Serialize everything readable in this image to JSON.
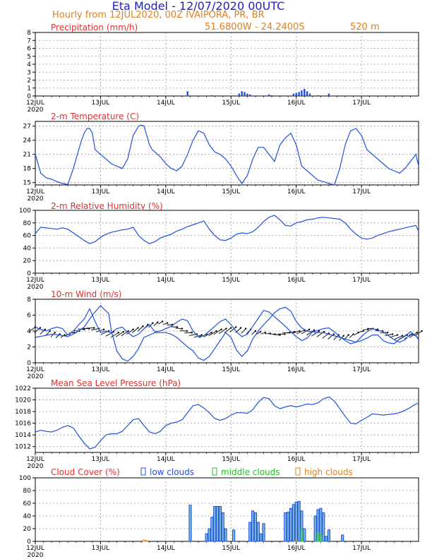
{
  "header": {
    "title": "Eta Model - 12/07/2020 00UTC",
    "subtitle": "Hourly from 12JUL2020, 00Z  IVAIPORA, PR, BR",
    "coords": "51.6800W - 24.2400S",
    "elevation": "520  m"
  },
  "colors": {
    "title": "#2020d0",
    "orange": "#e08020",
    "panel_title": "#e03030",
    "line": "#2050e0",
    "low": "#2050e0",
    "middle": "#20c020",
    "high": "#e08020",
    "grid": "#999999"
  },
  "x_labels": [
    "12JUL",
    "13JUL",
    "14JUL",
    "15JUL",
    "16JUL",
    "17JUL"
  ],
  "x_year": "2020",
  "chart_data": [
    {
      "type": "bar",
      "title": "Precipitation (mm/h)",
      "ylim": [
        0,
        8
      ],
      "yticks": [
        0,
        1,
        2,
        3,
        4,
        5,
        6,
        7,
        8
      ],
      "points": [
        [
          56,
          0.6
        ],
        [
          65,
          0.1
        ],
        [
          75,
          0.3
        ],
        [
          76,
          0.6
        ],
        [
          77,
          0.5
        ],
        [
          78,
          0.3
        ],
        [
          79,
          0.2
        ],
        [
          86,
          0.2
        ],
        [
          87,
          0.1
        ],
        [
          95,
          0.3
        ],
        [
          96,
          0.4
        ],
        [
          97,
          0.5
        ],
        [
          98,
          0.7
        ],
        [
          99,
          0.9
        ],
        [
          100,
          0.6
        ],
        [
          101,
          0.3
        ],
        [
          104,
          0.1
        ],
        [
          108,
          0.3
        ]
      ]
    },
    {
      "type": "line",
      "title": "2-m Temperature (C)",
      "ylim": [
        14.5,
        28
      ],
      "yticks": [
        15,
        18,
        21,
        24,
        27
      ],
      "x": [
        0,
        2,
        4,
        6,
        8,
        10,
        12,
        14,
        16,
        17,
        18,
        19,
        20,
        21,
        22,
        24,
        26,
        28,
        30,
        32,
        34,
        36,
        38,
        39,
        40,
        41,
        42,
        43,
        44,
        46,
        48,
        50,
        52,
        54,
        56,
        58,
        60,
        62,
        64,
        66,
        68,
        70,
        72,
        74,
        76,
        78,
        80,
        82,
        84,
        86,
        88,
        90,
        92,
        94,
        96,
        98,
        100,
        102,
        104,
        106,
        108,
        110,
        112,
        114,
        116,
        118,
        120,
        122,
        124,
        126,
        128,
        130,
        132,
        134,
        136,
        138,
        140,
        141
      ],
      "values": [
        21,
        17,
        16,
        15.7,
        15.2,
        14.8,
        14.6,
        18,
        22,
        24,
        25.5,
        26.5,
        26.5,
        25.5,
        22,
        21,
        20,
        19,
        18.5,
        18,
        20,
        25,
        27,
        27.2,
        27,
        25,
        23,
        22,
        21.5,
        20.5,
        19,
        18,
        17.5,
        18.5,
        21,
        24,
        26,
        25.5,
        23,
        21.5,
        21,
        20,
        18.5,
        16.5,
        14.8,
        16.5,
        20,
        22.5,
        22.5,
        21,
        19.5,
        23,
        24.5,
        25.5,
        23,
        18.5,
        17.5,
        16.5,
        15.5,
        15.2,
        14.8,
        14.5,
        18,
        23,
        26,
        26.5,
        25,
        22,
        21,
        20,
        19,
        18,
        17.5,
        17,
        18,
        19.5,
        21,
        18.5
      ]
    },
    {
      "type": "line",
      "title": "2-m Relative Humidity (%)",
      "ylim": [
        0,
        100
      ],
      "yticks": [
        0,
        20,
        40,
        60,
        80,
        100
      ],
      "x": [
        0,
        2,
        4,
        6,
        8,
        10,
        12,
        14,
        16,
        18,
        20,
        22,
        24,
        26,
        28,
        30,
        32,
        34,
        36,
        38,
        40,
        42,
        44,
        46,
        48,
        50,
        52,
        54,
        56,
        58,
        60,
        62,
        64,
        66,
        68,
        70,
        72,
        74,
        76,
        78,
        80,
        82,
        84,
        86,
        88,
        90,
        92,
        94,
        96,
        98,
        100,
        102,
        104,
        106,
        108,
        110,
        112,
        114,
        116,
        118,
        120,
        122,
        124,
        126,
        128,
        130,
        132,
        134,
        136,
        138,
        140,
        141
      ],
      "values": [
        63,
        73,
        72,
        71,
        70,
        72,
        70,
        64,
        58,
        52,
        47,
        50,
        57,
        62,
        65,
        67,
        69,
        70,
        73,
        60,
        52,
        47,
        50,
        56,
        59,
        62,
        67,
        70,
        74,
        77,
        80,
        83,
        70,
        60,
        53,
        52,
        56,
        62,
        64,
        63,
        66,
        73,
        82,
        89,
        92,
        85,
        76,
        75,
        80,
        82,
        85,
        86,
        88,
        89,
        88,
        87,
        86,
        80,
        70,
        62,
        56,
        54,
        56,
        60,
        63,
        66,
        68,
        70,
        72,
        74,
        76,
        67
      ]
    },
    {
      "type": "line+barbs",
      "title": "10-m Wind (m/s)",
      "ylim": [
        0,
        8
      ],
      "yticks": [
        0,
        2,
        4,
        6,
        8
      ],
      "x": [
        0,
        2,
        4,
        6,
        8,
        10,
        12,
        14,
        16,
        18,
        20,
        22,
        24,
        26,
        28,
        30,
        32,
        34,
        36,
        38,
        40,
        42,
        44,
        46,
        48,
        50,
        52,
        54,
        56,
        58,
        60,
        62,
        64,
        66,
        68,
        70,
        72,
        74,
        76,
        78,
        80,
        82,
        84,
        86,
        88,
        90,
        92,
        94,
        96,
        98,
        100,
        102,
        104,
        106,
        108,
        110,
        112,
        114,
        116,
        118,
        120,
        122,
        124,
        126,
        128,
        130,
        132,
        134,
        136,
        138,
        140,
        141
      ],
      "values": [
        4.5,
        4.2,
        4,
        4.3,
        4.5,
        4.3,
        3.5,
        4,
        4.8,
        5.5,
        6.8,
        5.2,
        3.8,
        4,
        3.8,
        4.3,
        4.5,
        3.8,
        3.3,
        3.6,
        4.3,
        4.8,
        3.9,
        4,
        4.3,
        4.6,
        5.1,
        5.5,
        5.3,
        4,
        3.3,
        3.4,
        4,
        4.6,
        5.2,
        5.5,
        4.8,
        3.9,
        3.3,
        3.6,
        4.6,
        5.6,
        6.6,
        6.4,
        5.8,
        5.2,
        4.6,
        3.9,
        3.3,
        2.8,
        3.1,
        3.9,
        4.1,
        4.3,
        4.4,
        3.9,
        3.3,
        2.8,
        2.4,
        2.6,
        3.3,
        3.9,
        4.3,
        4.1,
        3.9,
        3.4,
        2.9,
        2.6,
        2.9,
        3.6,
        3.4,
        3
      ],
      "x2": [
        0,
        3,
        6,
        9,
        12,
        15,
        18,
        21,
        24,
        27,
        28,
        30,
        32,
        34,
        36,
        38,
        40,
        44,
        48,
        50,
        52,
        54,
        56,
        58,
        60,
        62,
        64,
        66,
        68,
        70,
        72,
        74,
        76,
        78,
        80,
        82,
        84,
        86,
        88,
        90,
        92,
        94,
        96,
        98,
        100,
        102,
        104,
        106,
        108,
        110,
        112,
        114,
        116,
        118,
        120,
        122,
        124,
        126,
        128,
        130,
        132,
        134,
        136,
        138,
        140,
        141
      ],
      "values2": [
        3.2,
        3.4,
        3.6,
        3.5,
        3.3,
        3.8,
        4.5,
        6,
        7.2,
        6.2,
        4,
        1.5,
        0.5,
        0.2,
        0.8,
        1.8,
        3.2,
        3.8,
        3.8,
        3.6,
        3.2,
        2.6,
        2,
        1.5,
        0.6,
        0.3,
        0.8,
        1.8,
        2.8,
        3.8,
        3.2,
        1.6,
        0.8,
        1.5,
        3,
        4,
        4.8,
        5.5,
        6.3,
        6.8,
        7,
        6.5,
        5.2,
        4.4,
        4,
        3.9,
        3.8,
        3.8,
        3.6,
        3.4,
        3.2,
        3,
        2.8,
        2.6,
        2.8,
        3.1,
        3.5,
        3.5,
        2.8,
        2.5,
        2.4,
        3,
        3.4,
        3.9,
        3.4,
        2.9
      ],
      "barb_speed": [
        4.5,
        4.4,
        4.2,
        4.0,
        3.8,
        3.6,
        3.5,
        3.6,
        3.8,
        4.0,
        4.2,
        4.3,
        4.4,
        4.3,
        4.2,
        4.0,
        3.9,
        3.8,
        3.9,
        4.0,
        4.2,
        4.4,
        4.6,
        4.8,
        5.0,
        5.1,
        5.2,
        5.0,
        4.8,
        4.5,
        4.3,
        4.0,
        3.8,
        3.6,
        3.5,
        3.6,
        3.8,
        4.0,
        4.2,
        4.3,
        4.4,
        4.5,
        4.4,
        4.3,
        4.2,
        4.0,
        3.9,
        3.8,
        3.7,
        3.6,
        3.5,
        3.6,
        3.8,
        3.9,
        4.0,
        4.1,
        4.2,
        4.1,
        4.0,
        3.9,
        3.7,
        3.6,
        3.5,
        3.4,
        3.5,
        3.6,
        3.8,
        4.0,
        4.2,
        4.3,
        4.2,
        4.0,
        3.8,
        3.6,
        3.5,
        3.4,
        3.5,
        3.6,
        3.8,
        4.0
      ]
    },
    {
      "type": "line",
      "title": "Mean Sea Level Pressure (hPa)",
      "ylim": [
        1011,
        1022
      ],
      "yticks": [
        1012,
        1014,
        1016,
        1018,
        1020,
        1022
      ],
      "x": [
        0,
        2,
        4,
        6,
        8,
        10,
        12,
        14,
        16,
        18,
        20,
        22,
        24,
        26,
        28,
        30,
        32,
        34,
        36,
        38,
        40,
        42,
        44,
        46,
        48,
        50,
        52,
        54,
        56,
        58,
        60,
        62,
        64,
        66,
        68,
        70,
        72,
        74,
        76,
        78,
        80,
        82,
        84,
        86,
        88,
        90,
        92,
        94,
        96,
        98,
        100,
        102,
        104,
        106,
        108,
        110,
        112,
        114,
        116,
        118,
        120,
        122,
        124,
        126,
        128,
        130,
        132,
        134,
        136,
        138,
        140,
        141
      ],
      "values": [
        1014.5,
        1014.8,
        1014.6,
        1014.5,
        1014.8,
        1015.3,
        1015.6,
        1015.2,
        1013.8,
        1012.6,
        1011.6,
        1011.9,
        1013,
        1014,
        1014.2,
        1014.2,
        1014.6,
        1015.6,
        1016.6,
        1016.8,
        1015.6,
        1014.5,
        1014.2,
        1014.6,
        1015.6,
        1016,
        1016.2,
        1016.6,
        1017.8,
        1019,
        1019.2,
        1018.6,
        1017.8,
        1016.8,
        1016.5,
        1016.8,
        1017.4,
        1017.8,
        1017.8,
        1017.7,
        1018.3,
        1019.6,
        1020.4,
        1020.2,
        1019,
        1018.5,
        1018.8,
        1019,
        1018.8,
        1019,
        1019.3,
        1019.2,
        1019.5,
        1020.2,
        1020.5,
        1019.8,
        1018.5,
        1017.2,
        1016,
        1015.9,
        1016.5,
        1017,
        1017.6,
        1017.5,
        1017.4,
        1017.5,
        1017.6,
        1017.8,
        1018.2,
        1018.7,
        1019.3,
        1019.4
      ]
    },
    {
      "type": "bar",
      "title": "Cloud Cover (%)",
      "ylim": [
        0,
        100
      ],
      "yticks": [
        0,
        20,
        40,
        60,
        80,
        100
      ],
      "legend": [
        "low clouds",
        "middle clouds",
        "high clouds"
      ],
      "low": [
        [
          57,
          57
        ],
        [
          63,
          12
        ],
        [
          64,
          20
        ],
        [
          65,
          38
        ],
        [
          66,
          55
        ],
        [
          67,
          55
        ],
        [
          68,
          55
        ],
        [
          69,
          45
        ],
        [
          70,
          20
        ],
        [
          73,
          18
        ],
        [
          79,
          30
        ],
        [
          80,
          48
        ],
        [
          81,
          45
        ],
        [
          82,
          30
        ],
        [
          83,
          12
        ],
        [
          84,
          28
        ],
        [
          92,
          45
        ],
        [
          93,
          46
        ],
        [
          94,
          52
        ],
        [
          95,
          58
        ],
        [
          96,
          62
        ],
        [
          97,
          63
        ],
        [
          98,
          48
        ],
        [
          99,
          20
        ],
        [
          103,
          40
        ],
        [
          104,
          50
        ],
        [
          105,
          52
        ],
        [
          106,
          45
        ],
        [
          107,
          8
        ],
        [
          108,
          18
        ],
        [
          113,
          10
        ]
      ],
      "middle": [
        [
          98,
          18
        ],
        [
          104,
          15
        ],
        [
          105,
          10
        ]
      ],
      "high": [
        [
          40,
          2
        ],
        [
          41,
          1
        ],
        [
          96,
          1
        ]
      ]
    }
  ]
}
